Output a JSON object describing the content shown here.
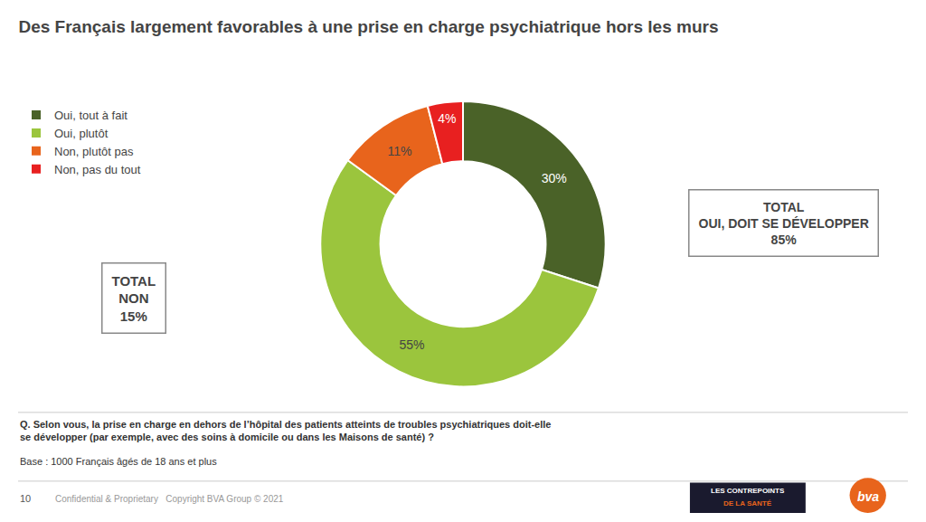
{
  "chart_data": {
    "type": "pie",
    "title": "Des Français largement favorables à une prise en charge psychiatrique hors les murs",
    "categories": [
      "Oui, tout à fait",
      "Oui, plutôt",
      "Non, plutôt pas",
      "Non, pas du tout"
    ],
    "values": [
      30,
      55,
      11,
      4
    ],
    "value_labels": [
      "30%",
      "55%",
      "11%",
      "4%"
    ],
    "colors": [
      "#4a6228",
      "#9bc53d",
      "#e8641c",
      "#e82020"
    ],
    "data_labels": true,
    "legend": "top-left",
    "annotations": [
      "TOTAL\nNON\n15%",
      "TOTAL\nOUI, DOIT SE DÉVELOPPER\n85%",
      "Q. Selon vous, la prise en charge en dehors de l’hôpital des patients atteints de troubles psychiatriques doit-elle\nse développer (par exemple, avec des soins à domicile ou dans les Maisons de santé) ?",
      "Base : 1000 Français âgés de 18 ans et plus",
      "10",
      "Confidential & Proprietary   Copyright BVA Group © 2021",
      "LES CONTREPOINTS",
      "DE LA SANTÉ",
      "bva"
    ]
  }
}
